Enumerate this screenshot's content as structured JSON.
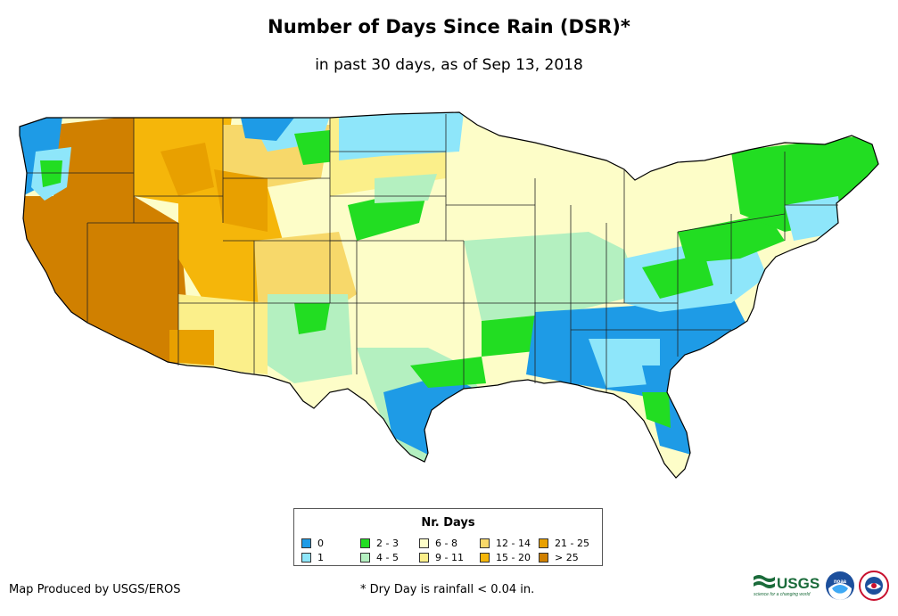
{
  "title": "Number of Days Since Rain (DSR)*",
  "subtitle": "in past 30 days, as of Sep 13, 2018",
  "legend": {
    "title": "Nr. Days",
    "items": [
      {
        "label": "0",
        "color": "#1e9be6"
      },
      {
        "label": "1",
        "color": "#8ee6fa"
      },
      {
        "label": "2 - 3",
        "color": "#22dd22"
      },
      {
        "label": "4 - 5",
        "color": "#b4f0c0"
      },
      {
        "label": "6 - 8",
        "color": "#fdfdc8"
      },
      {
        "label": "9 - 11",
        "color": "#fbef8a"
      },
      {
        "label": "12 - 14",
        "color": "#f7d86a"
      },
      {
        "label": "15 - 20",
        "color": "#f5b60a"
      },
      {
        "label": "21 - 25",
        "color": "#e8a000"
      },
      {
        "label": "> 25",
        "color": "#d08000"
      }
    ]
  },
  "credit": "Map Produced by USGS/EROS",
  "footnote": "* Dry Day is rainfall < 0.04 in.",
  "logos": {
    "usgs": {
      "text": "USGS",
      "tagline": "science for a changing world"
    },
    "noaa": {
      "text": "noaa"
    }
  }
}
